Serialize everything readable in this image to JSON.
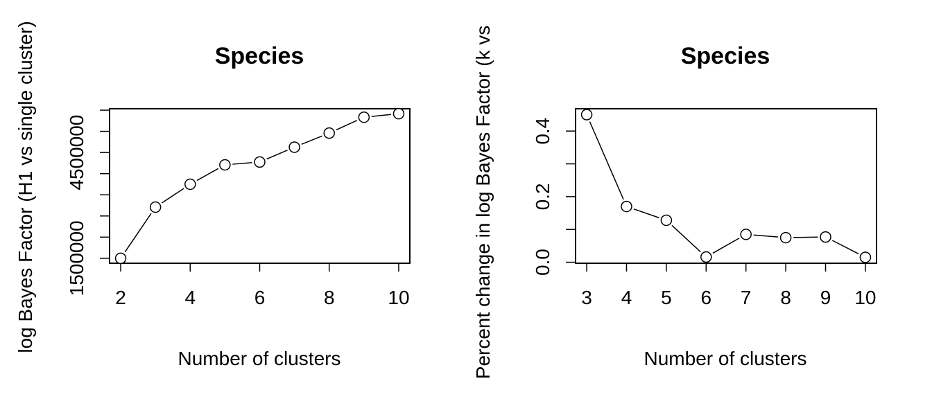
{
  "chart_data": [
    {
      "type": "line",
      "title": "Species",
      "xlabel": "Number of clusters",
      "ylabel": "log Bayes Factor (H1 vs single cluster)",
      "x": [
        2,
        3,
        4,
        5,
        6,
        7,
        8,
        9,
        10
      ],
      "series": [
        {
          "values": [
            1500000,
            2950000,
            3600000,
            4150000,
            4230000,
            4650000,
            5050000,
            5500000,
            5600000
          ]
        }
      ],
      "xticks": [
        2,
        4,
        6,
        8,
        10
      ],
      "xtick_labels": [
        "2",
        "4",
        "6",
        "8",
        "10"
      ],
      "yticks": [
        1500000,
        2100000,
        2700000,
        3300000,
        3900000,
        4500000,
        5100000,
        5700000
      ],
      "ytick_labels": [
        "1500000",
        "",
        "",
        "",
        "",
        "4500000",
        "",
        ""
      ],
      "xlim": [
        1.68,
        10.32
      ],
      "ylim": [
        1360000,
        5740000
      ],
      "grid": false,
      "marker": "open-circle"
    },
    {
      "type": "line",
      "title": "Species",
      "xlabel": "Number of clusters",
      "ylabel": "Percent change in log Bayes Factor (k vs",
      "x": [
        3,
        4,
        5,
        6,
        7,
        8,
        9,
        10
      ],
      "series": [
        {
          "values": [
            0.45,
            0.17,
            0.128,
            0.016,
            0.085,
            0.075,
            0.077,
            0.015
          ]
        }
      ],
      "xticks": [
        3,
        4,
        5,
        6,
        7,
        8,
        9,
        10
      ],
      "xtick_labels": [
        "3",
        "4",
        "5",
        "6",
        "7",
        "8",
        "9",
        "10"
      ],
      "yticks": [
        0.0,
        0.1,
        0.2,
        0.3,
        0.4
      ],
      "ytick_labels": [
        "0.0",
        "",
        "0.2",
        "",
        "0.4"
      ],
      "xlim": [
        2.72,
        10.28
      ],
      "ylim": [
        -0.003,
        0.468
      ],
      "grid": false,
      "marker": "open-circle"
    }
  ]
}
